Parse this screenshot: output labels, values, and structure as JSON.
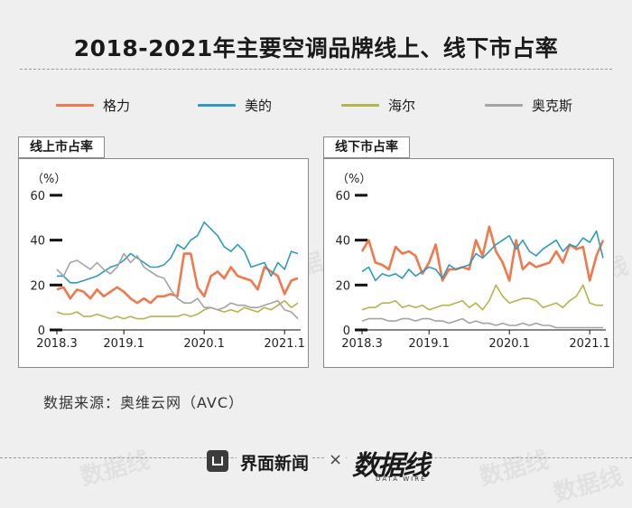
{
  "title": "2018-2021年主要空调品牌线上、线下市占率",
  "legend": [
    {
      "name": "格力",
      "color": "#f0784a"
    },
    {
      "name": "美的",
      "color": "#2e9bbd"
    },
    {
      "name": "海尔",
      "color": "#b4b54a"
    },
    {
      "name": "奥克斯",
      "color": "#a3a3a3"
    }
  ],
  "source": "数据来源：奥维云网（AVC）",
  "footer": {
    "brand1": "界面新闻",
    "times": "×",
    "brand2": "数据线",
    "brand2_sub": "DATA WIRE"
  },
  "watermark": "数据线",
  "chart_data": [
    {
      "type": "line",
      "title": "线上市占率",
      "ylabel": "（%）",
      "ylim": [
        0,
        60
      ],
      "yticks": [
        0,
        20,
        40,
        60
      ],
      "x_tick_labels": [
        {
          "label": "2018.3",
          "index": 0
        },
        {
          "label": "2019.1",
          "index": 10
        },
        {
          "label": "2020.1",
          "index": 22
        },
        {
          "label": "2021.1",
          "index": 34
        }
      ],
      "series": [
        {
          "name": "格力",
          "color": "#f0784a",
          "values": [
            18,
            19,
            14,
            18,
            17,
            14,
            18,
            15,
            17,
            19,
            17,
            14,
            12,
            14,
            12,
            15,
            15,
            16,
            15,
            34,
            34,
            19,
            15,
            24,
            26,
            23,
            28,
            24,
            23,
            22,
            18,
            28,
            26,
            24,
            16,
            22,
            23
          ]
        },
        {
          "name": "美的",
          "color": "#2e9bbd",
          "values": [
            24,
            24,
            21,
            21,
            22,
            23,
            24,
            26,
            28,
            29,
            31,
            34,
            32,
            30,
            28,
            28,
            29,
            32,
            38,
            36,
            40,
            42,
            48,
            45,
            42,
            37,
            35,
            38,
            35,
            28,
            29,
            30,
            24,
            30,
            27,
            35,
            34
          ]
        },
        {
          "name": "海尔",
          "color": "#b4b54a",
          "values": [
            8,
            7,
            7,
            8,
            6,
            6,
            7,
            6,
            5,
            6,
            5,
            6,
            5,
            5,
            6,
            6,
            6,
            6,
            6,
            7,
            6,
            7,
            9,
            10,
            9,
            8,
            9,
            8,
            10,
            9,
            8,
            10,
            9,
            11,
            13,
            10,
            12
          ]
        },
        {
          "name": "奥克斯",
          "color": "#a3a3a3",
          "values": [
            27,
            24,
            30,
            31,
            29,
            27,
            30,
            27,
            25,
            28,
            34,
            30,
            33,
            28,
            26,
            24,
            23,
            18,
            14,
            12,
            12,
            14,
            10,
            10,
            9,
            10,
            12,
            11,
            11,
            10,
            10,
            11,
            12,
            13,
            9,
            8,
            5
          ]
        }
      ]
    },
    {
      "type": "line",
      "title": "线下市占率",
      "ylabel": "（%）",
      "ylim": [
        0,
        60
      ],
      "yticks": [
        0,
        20,
        40,
        60
      ],
      "x_tick_labels": [
        {
          "label": "2018.3",
          "index": 0
        },
        {
          "label": "2019.1",
          "index": 10
        },
        {
          "label": "2020.1",
          "index": 22
        },
        {
          "label": "2021.1",
          "index": 34
        }
      ],
      "series": [
        {
          "name": "格力",
          "color": "#f0784a",
          "values": [
            35,
            40,
            30,
            29,
            27,
            37,
            34,
            35,
            33,
            25,
            30,
            38,
            22,
            27,
            27,
            28,
            27,
            40,
            33,
            46,
            35,
            30,
            22,
            40,
            27,
            30,
            28,
            29,
            30,
            35,
            30,
            38,
            36,
            37,
            22,
            33,
            40
          ]
        },
        {
          "name": "美的",
          "color": "#2e9bbd",
          "values": [
            26,
            28,
            22,
            25,
            24,
            25,
            23,
            27,
            24,
            26,
            28,
            27,
            23,
            29,
            27,
            28,
            29,
            34,
            32,
            35,
            38,
            40,
            42,
            36,
            40,
            35,
            33,
            36,
            38,
            40,
            35,
            38,
            37,
            41,
            39,
            44,
            32
          ]
        },
        {
          "name": "海尔",
          "color": "#b4b54a",
          "values": [
            9,
            10,
            10,
            12,
            12,
            13,
            10,
            11,
            10,
            11,
            9,
            10,
            11,
            11,
            12,
            13,
            10,
            12,
            9,
            13,
            20,
            15,
            12,
            13,
            14,
            14,
            13,
            10,
            11,
            12,
            10,
            13,
            15,
            20,
            12,
            11,
            11
          ]
        },
        {
          "name": "奥克斯",
          "color": "#a3a3a3",
          "values": [
            4,
            5,
            5,
            5,
            4,
            4,
            5,
            5,
            4,
            5,
            5,
            4,
            4,
            3,
            4,
            5,
            3,
            4,
            3,
            3,
            2,
            3,
            2,
            2,
            3,
            2,
            3,
            2,
            2,
            1,
            1,
            1,
            1,
            1,
            1,
            1,
            1
          ]
        }
      ]
    }
  ]
}
